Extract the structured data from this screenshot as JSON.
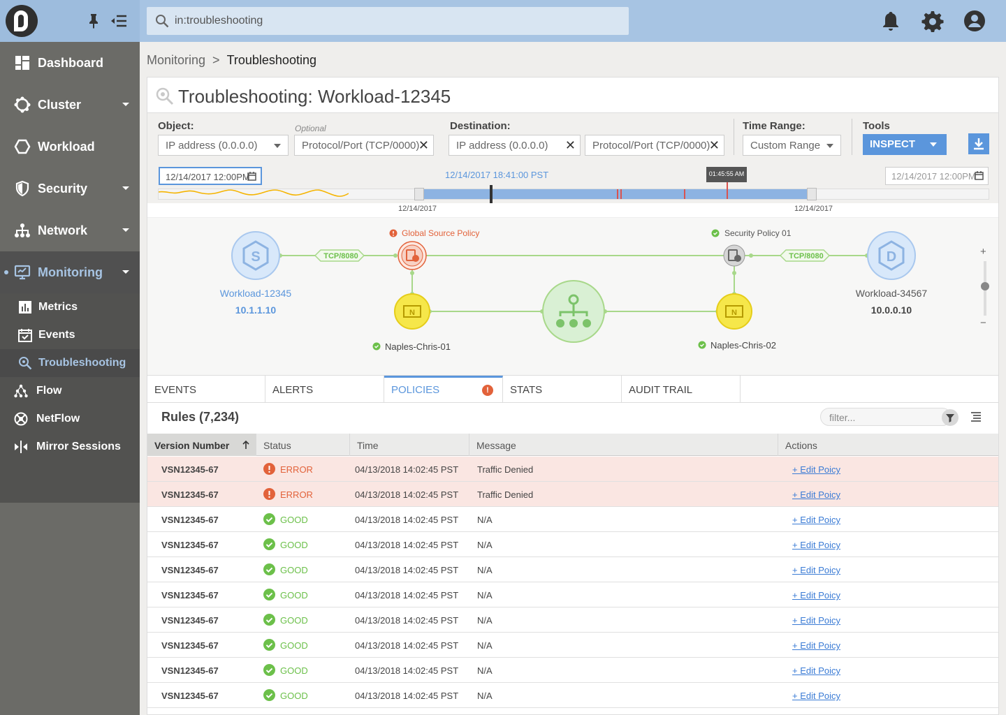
{
  "search": {
    "value": "in:troubleshooting"
  },
  "sidebar": {
    "items": [
      {
        "label": "Dashboard"
      },
      {
        "label": "Cluster"
      },
      {
        "label": "Workload"
      },
      {
        "label": "Security"
      },
      {
        "label": "Network"
      },
      {
        "label": "Monitoring"
      }
    ],
    "sub_items": [
      {
        "label": "Metrics"
      },
      {
        "label": "Events"
      },
      {
        "label": "Troubleshooting"
      }
    ],
    "extra_items": [
      {
        "label": "Flow"
      },
      {
        "label": "NetFlow"
      },
      {
        "label": "Mirror Sessions"
      }
    ]
  },
  "breadcrumb": {
    "parent": "Monitoring",
    "separator": ">",
    "current": "Troubleshooting"
  },
  "page_title": "Troubleshooting: Workload-12345",
  "filters": {
    "object_label": "Object:",
    "object_ip_placeholder": "IP address (0.0.0.0)",
    "optional_label": "Optional",
    "object_port_placeholder": "Protocol/Port (TCP/0000)",
    "destination_label": "Destination:",
    "dest_ip_placeholder": "IP address (0.0.0.0)",
    "dest_port_placeholder": "Protocol/Port (TCP/0000)",
    "time_range_label": "Time Range:",
    "time_range_value": "Custom Range",
    "tools_label": "Tools",
    "inspect_label": "INSPECT"
  },
  "timeline": {
    "start": "12/14/2017 12:00PM",
    "end": "12/14/2017 12:00PM",
    "center": "12/14/2017 18:41:00 PST",
    "tooltip": "01:45:55 AM",
    "label_left": "12/14/2017",
    "label_right": "12/14/2017"
  },
  "topology": {
    "source": {
      "name": "Workload-12345",
      "ip": "10.1.1.10",
      "badge": "S"
    },
    "dest": {
      "name": "Workload-34567",
      "ip": "10.0.0.10",
      "badge": "D"
    },
    "left_link": "TCP/8080",
    "right_link": "TCP/8080",
    "left_policy": "Global Source Policy",
    "right_policy": "Security Policy 01",
    "left_naples": "Naples-Chris-01",
    "right_naples": "Naples-Chris-02",
    "zoom_in": "+",
    "zoom_out": "−"
  },
  "tabs": [
    {
      "label": "EVENTS"
    },
    {
      "label": "ALERTS"
    },
    {
      "label": "POLICIES"
    },
    {
      "label": "STATS"
    },
    {
      "label": "AUDIT TRAIL"
    }
  ],
  "rules": {
    "title": "Rules (7,234)",
    "filter_placeholder": "filter...",
    "columns": [
      "Version Number",
      "Status",
      "Time",
      "Message",
      "Actions"
    ],
    "rows": [
      {
        "version": "VSN12345-67",
        "status": "ERROR",
        "time": "04/13/2018 14:02:45 PST",
        "message": "Traffic Denied",
        "action": "+ Edit Poicy"
      },
      {
        "version": "VSN12345-67",
        "status": "ERROR",
        "time": "04/13/2018 14:02:45 PST",
        "message": "Traffic Denied",
        "action": "+ Edit Poicy"
      },
      {
        "version": "VSN12345-67",
        "status": "GOOD",
        "time": "04/13/2018 14:02:45 PST",
        "message": "N/A",
        "action": "+ Edit Poicy"
      },
      {
        "version": "VSN12345-67",
        "status": "GOOD",
        "time": "04/13/2018 14:02:45 PST",
        "message": "N/A",
        "action": "+ Edit Poicy"
      },
      {
        "version": "VSN12345-67",
        "status": "GOOD",
        "time": "04/13/2018 14:02:45 PST",
        "message": "N/A",
        "action": "+ Edit Poicy"
      },
      {
        "version": "VSN12345-67",
        "status": "GOOD",
        "time": "04/13/2018 14:02:45 PST",
        "message": "N/A",
        "action": "+ Edit Poicy"
      },
      {
        "version": "VSN12345-67",
        "status": "GOOD",
        "time": "04/13/2018 14:02:45 PST",
        "message": "N/A",
        "action": "+ Edit Poicy"
      },
      {
        "version": "VSN12345-67",
        "status": "GOOD",
        "time": "04/13/2018 14:02:45 PST",
        "message": "N/A",
        "action": "+ Edit Poicy"
      },
      {
        "version": "VSN12345-67",
        "status": "GOOD",
        "time": "04/13/2018 14:02:45 PST",
        "message": "N/A",
        "action": "+ Edit Poicy"
      },
      {
        "version": "VSN12345-67",
        "status": "GOOD",
        "time": "04/13/2018 14:02:45 PST",
        "message": "N/A",
        "action": "+ Edit Poicy"
      }
    ]
  },
  "colors": {
    "accent": "#5b96dc",
    "error": "#e2623a",
    "good": "#6cc04a",
    "topbar": "#a7c4e3",
    "sidebar": "#6b6b67"
  },
  "icons": [
    "logo-icon",
    "pin-icon",
    "collapse-menu-icon",
    "search-icon",
    "bell-icon",
    "gear-icon",
    "user-icon",
    "dashboard-icon",
    "cluster-icon",
    "workload-icon",
    "shield-icon",
    "network-icon",
    "monitor-icon",
    "metrics-icon",
    "events-icon",
    "troubleshooting-icon",
    "flow-icon",
    "netflow-icon",
    "mirror-icon",
    "download-icon",
    "calendar-icon",
    "filter-icon",
    "menu-lines-icon"
  ]
}
